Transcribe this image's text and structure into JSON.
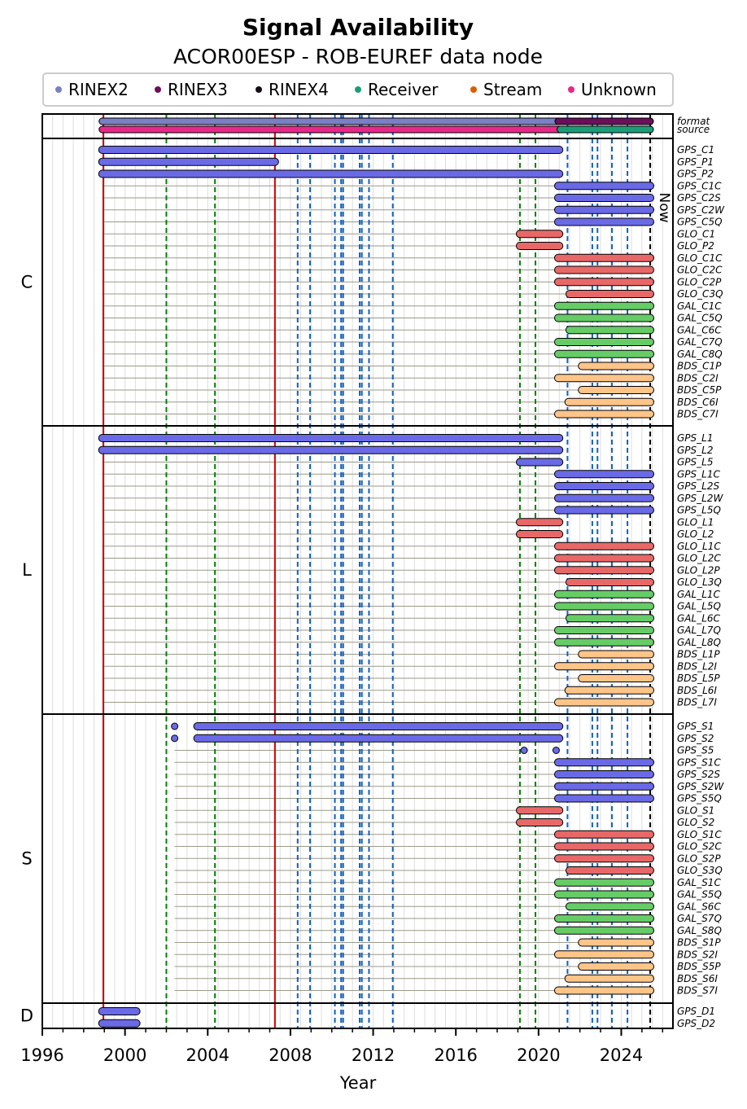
{
  "chart_data": {
    "type": "timeline",
    "title": "Signal Availability",
    "subtitle": "ACOR00ESP - ROB-EUREF data node",
    "xlabel": "Year",
    "xlim": [
      1996.0,
      2026.5
    ],
    "xticks": [
      "1996",
      "2000",
      "2004",
      "2008",
      "2012",
      "2016",
      "2020",
      "2024"
    ],
    "now_label": "Now",
    "now_year": 2025.4,
    "legend": [
      {
        "name": "RINEX2",
        "color": "#7b7fc4"
      },
      {
        "name": "RINEX3",
        "color": "#6b0f5a"
      },
      {
        "name": "RINEX4",
        "color": "#1a0a14"
      },
      {
        "name": "Receiver",
        "color": "#1b9e77"
      },
      {
        "name": "Stream",
        "color": "#d95f02"
      },
      {
        "name": "Unknown",
        "color": "#e7298a"
      }
    ],
    "vlines": [
      {
        "year": 1998.95,
        "color": "#cc0000",
        "style": "solid"
      },
      {
        "year": 2007.25,
        "color": "#cc0000",
        "style": "solid"
      },
      {
        "year": 2002.0,
        "color": "#008000",
        "style": "dashed"
      },
      {
        "year": 2004.35,
        "color": "#008000",
        "style": "dashed"
      },
      {
        "year": 2019.1,
        "color": "#008000",
        "style": "dashed"
      },
      {
        "year": 2019.85,
        "color": "#008000",
        "style": "dashed"
      },
      {
        "year": 2008.35,
        "color": "#1060c0",
        "style": "dashed"
      },
      {
        "year": 2008.95,
        "color": "#1060c0",
        "style": "dashed"
      },
      {
        "year": 2010.15,
        "color": "#1060c0",
        "style": "dashed"
      },
      {
        "year": 2010.45,
        "color": "#1060c0",
        "style": "dashed"
      },
      {
        "year": 2010.55,
        "color": "#1060c0",
        "style": "dashed"
      },
      {
        "year": 2011.35,
        "color": "#1060c0",
        "style": "dashed"
      },
      {
        "year": 2011.45,
        "color": "#1060c0",
        "style": "dashed"
      },
      {
        "year": 2011.8,
        "color": "#1060c0",
        "style": "dashed"
      },
      {
        "year": 2012.95,
        "color": "#1060c0",
        "style": "dashed"
      },
      {
        "year": 2021.4,
        "color": "#1060c0",
        "style": "dashed"
      },
      {
        "year": 2022.6,
        "color": "#1060c0",
        "style": "dashed"
      },
      {
        "year": 2022.85,
        "color": "#1060c0",
        "style": "dashed"
      },
      {
        "year": 2023.55,
        "color": "#1060c0",
        "style": "dashed"
      },
      {
        "year": 2024.3,
        "color": "#1060c0",
        "style": "dashed"
      },
      {
        "year": 2025.4,
        "color": "#000000",
        "style": "dashed"
      }
    ],
    "meta_rows": [
      {
        "label": "format",
        "segments": [
          {
            "start": 1998.9,
            "end": 2020.95,
            "color": "#7b7fc4"
          },
          {
            "start": 2020.95,
            "end": 2025.4,
            "color": "#6b0f5a"
          }
        ]
      },
      {
        "label": "source",
        "segments": [
          {
            "start": 1998.9,
            "end": 2021.05,
            "color": "#e7298a"
          },
          {
            "start": 2021.05,
            "end": 2025.4,
            "color": "#1b9e77"
          }
        ]
      }
    ],
    "groups": [
      {
        "name": "C",
        "signals": [
          {
            "name": "GPS_C1",
            "segments": [
              [
                1998.9,
                2021.0
              ]
            ]
          },
          {
            "name": "GPS_P1",
            "segments": [
              [
                1998.9,
                2007.25
              ]
            ]
          },
          {
            "name": "GPS_P2",
            "segments": [
              [
                1998.9,
                2021.0
              ]
            ]
          },
          {
            "name": "GPS_C1C",
            "segments": [
              [
                2020.95,
                2025.4
              ]
            ]
          },
          {
            "name": "GPS_C2S",
            "segments": [
              [
                2020.95,
                2025.4
              ]
            ]
          },
          {
            "name": "GPS_C2W",
            "segments": [
              [
                2020.95,
                2025.4
              ]
            ]
          },
          {
            "name": "GPS_C5Q",
            "segments": [
              [
                2020.95,
                2025.4
              ]
            ]
          },
          {
            "name": "GLO_C1",
            "segments": [
              [
                2019.1,
                2021.0
              ]
            ]
          },
          {
            "name": "GLO_P2",
            "segments": [
              [
                2019.1,
                2021.0
              ]
            ]
          },
          {
            "name": "GLO_C1C",
            "segments": [
              [
                2020.95,
                2025.4
              ]
            ]
          },
          {
            "name": "GLO_C2C",
            "segments": [
              [
                2020.95,
                2025.4
              ]
            ]
          },
          {
            "name": "GLO_C2P",
            "segments": [
              [
                2020.95,
                2025.4
              ]
            ]
          },
          {
            "name": "GLO_C3Q",
            "segments": [
              [
                2021.5,
                2025.4
              ]
            ]
          },
          {
            "name": "GAL_C1C",
            "segments": [
              [
                2020.95,
                2025.4
              ]
            ]
          },
          {
            "name": "GAL_C5Q",
            "segments": [
              [
                2020.95,
                2025.4
              ]
            ]
          },
          {
            "name": "GAL_C6C",
            "segments": [
              [
                2021.5,
                2025.4
              ]
            ]
          },
          {
            "name": "GAL_C7Q",
            "segments": [
              [
                2020.95,
                2025.4
              ]
            ]
          },
          {
            "name": "GAL_C8Q",
            "segments": [
              [
                2020.95,
                2025.4
              ]
            ]
          },
          {
            "name": "BDS_C1P",
            "segments": [
              [
                2022.1,
                2025.4
              ]
            ]
          },
          {
            "name": "BDS_C2I",
            "segments": [
              [
                2020.95,
                2025.4
              ]
            ]
          },
          {
            "name": "BDS_C5P",
            "segments": [
              [
                2022.1,
                2025.4
              ]
            ]
          },
          {
            "name": "BDS_C6I",
            "segments": [
              [
                2021.45,
                2025.4
              ]
            ]
          },
          {
            "name": "BDS_C7I",
            "segments": [
              [
                2020.95,
                2025.4
              ]
            ]
          }
        ]
      },
      {
        "name": "L",
        "signals": [
          {
            "name": "GPS_L1",
            "segments": [
              [
                1998.9,
                2021.0
              ]
            ]
          },
          {
            "name": "GPS_L2",
            "segments": [
              [
                1998.9,
                2021.0
              ]
            ]
          },
          {
            "name": "GPS_L5",
            "segments": [
              [
                2019.1,
                2021.0
              ]
            ]
          },
          {
            "name": "GPS_L1C",
            "segments": [
              [
                2020.95,
                2025.4
              ]
            ]
          },
          {
            "name": "GPS_L2S",
            "segments": [
              [
                2020.95,
                2025.4
              ]
            ]
          },
          {
            "name": "GPS_L2W",
            "segments": [
              [
                2020.95,
                2025.4
              ]
            ]
          },
          {
            "name": "GPS_L5Q",
            "segments": [
              [
                2020.95,
                2025.4
              ]
            ]
          },
          {
            "name": "GLO_L1",
            "segments": [
              [
                2019.1,
                2021.0
              ]
            ]
          },
          {
            "name": "GLO_L2",
            "segments": [
              [
                2019.1,
                2021.0
              ]
            ]
          },
          {
            "name": "GLO_L1C",
            "segments": [
              [
                2020.95,
                2025.4
              ]
            ]
          },
          {
            "name": "GLO_L2C",
            "segments": [
              [
                2020.95,
                2025.4
              ]
            ]
          },
          {
            "name": "GLO_L2P",
            "segments": [
              [
                2020.95,
                2025.4
              ]
            ]
          },
          {
            "name": "GLO_L3Q",
            "segments": [
              [
                2021.5,
                2025.4
              ]
            ]
          },
          {
            "name": "GAL_L1C",
            "segments": [
              [
                2020.95,
                2025.4
              ]
            ]
          },
          {
            "name": "GAL_L5Q",
            "segments": [
              [
                2020.95,
                2025.4
              ]
            ]
          },
          {
            "name": "GAL_L6C",
            "segments": [
              [
                2021.5,
                2025.4
              ]
            ]
          },
          {
            "name": "GAL_L7Q",
            "segments": [
              [
                2020.95,
                2025.4
              ]
            ]
          },
          {
            "name": "GAL_L8Q",
            "segments": [
              [
                2020.95,
                2025.4
              ]
            ]
          },
          {
            "name": "BDS_L1P",
            "segments": [
              [
                2022.1,
                2025.4
              ]
            ]
          },
          {
            "name": "BDS_L2I",
            "segments": [
              [
                2020.95,
                2025.4
              ]
            ]
          },
          {
            "name": "BDS_L5P",
            "segments": [
              [
                2022.1,
                2025.4
              ]
            ]
          },
          {
            "name": "BDS_L6I",
            "segments": [
              [
                2021.45,
                2025.4
              ]
            ]
          },
          {
            "name": "BDS_L7I",
            "segments": [
              [
                2020.95,
                2025.4
              ]
            ]
          }
        ]
      },
      {
        "name": "S",
        "signals": [
          {
            "name": "GPS_S1",
            "segments": [
              [
                2002.4,
                2002.4
              ],
              [
                2003.5,
                2021.0
              ]
            ]
          },
          {
            "name": "GPS_S2",
            "segments": [
              [
                2002.4,
                2002.4
              ],
              [
                2003.5,
                2021.0
              ]
            ]
          },
          {
            "name": "GPS_S5",
            "segments": [
              [
                2019.3,
                2019.3
              ],
              [
                2020.85,
                2020.85
              ]
            ]
          },
          {
            "name": "GPS_S1C",
            "segments": [
              [
                2020.95,
                2025.4
              ]
            ]
          },
          {
            "name": "GPS_S2S",
            "segments": [
              [
                2020.95,
                2025.4
              ]
            ]
          },
          {
            "name": "GPS_S2W",
            "segments": [
              [
                2020.95,
                2025.4
              ]
            ]
          },
          {
            "name": "GPS_S5Q",
            "segments": [
              [
                2020.95,
                2025.4
              ]
            ]
          },
          {
            "name": "GLO_S1",
            "segments": [
              [
                2019.1,
                2021.0
              ]
            ]
          },
          {
            "name": "GLO_S2",
            "segments": [
              [
                2019.1,
                2021.0
              ]
            ]
          },
          {
            "name": "GLO_S1C",
            "segments": [
              [
                2020.95,
                2025.4
              ]
            ]
          },
          {
            "name": "GLO_S2C",
            "segments": [
              [
                2020.95,
                2025.4
              ]
            ]
          },
          {
            "name": "GLO_S2P",
            "segments": [
              [
                2020.95,
                2025.4
              ]
            ]
          },
          {
            "name": "GLO_S3Q",
            "segments": [
              [
                2021.5,
                2025.4
              ]
            ]
          },
          {
            "name": "GAL_S1C",
            "segments": [
              [
                2020.95,
                2025.4
              ]
            ]
          },
          {
            "name": "GAL_S5Q",
            "segments": [
              [
                2020.95,
                2025.4
              ]
            ]
          },
          {
            "name": "GAL_S6C",
            "segments": [
              [
                2021.5,
                2025.4
              ]
            ]
          },
          {
            "name": "GAL_S7Q",
            "segments": [
              [
                2020.95,
                2025.4
              ]
            ]
          },
          {
            "name": "GAL_S8Q",
            "segments": [
              [
                2020.95,
                2025.4
              ]
            ]
          },
          {
            "name": "BDS_S1P",
            "segments": [
              [
                2022.1,
                2025.4
              ]
            ]
          },
          {
            "name": "BDS_S2I",
            "segments": [
              [
                2020.95,
                2025.4
              ]
            ]
          },
          {
            "name": "BDS_S5P",
            "segments": [
              [
                2022.1,
                2025.4
              ]
            ]
          },
          {
            "name": "BDS_S6I",
            "segments": [
              [
                2021.45,
                2025.4
              ]
            ]
          },
          {
            "name": "BDS_S7I",
            "segments": [
              [
                2020.95,
                2025.4
              ]
            ]
          }
        ]
      },
      {
        "name": "D",
        "signals": [
          {
            "name": "GPS_D1",
            "segments": [
              [
                1998.9,
                2000.55
              ]
            ]
          },
          {
            "name": "GPS_D2",
            "segments": [
              [
                1998.9,
                2000.55
              ]
            ]
          }
        ]
      }
    ],
    "constellation_colors": {
      "GPS": "#6a6ae6",
      "GLO": "#e86868",
      "GAL": "#66cc66",
      "BDS": "#ffc488"
    }
  }
}
